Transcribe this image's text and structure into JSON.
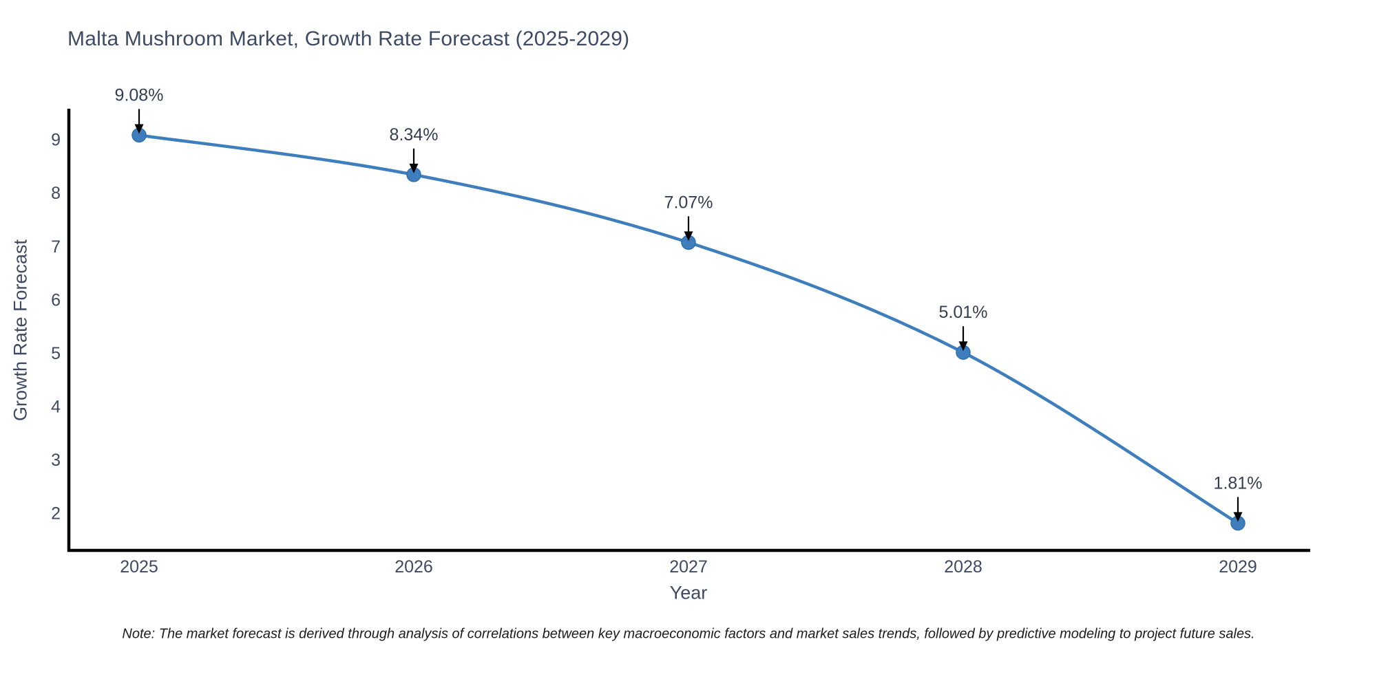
{
  "note": "Note: The market forecast is derived through analysis of correlations between key macroeconomic factors and market sales trends, followed by predictive modeling to project future sales.",
  "chart_data": {
    "type": "line",
    "title": "Malta Mushroom Market, Growth Rate Forecast (2025-2029)",
    "xlabel": "Year",
    "ylabel": "Growth Rate Forecast",
    "x": [
      2025,
      2026,
      2027,
      2028,
      2029
    ],
    "values": [
      9.08,
      8.34,
      7.07,
      5.01,
      1.81
    ],
    "annotations": [
      "9.08%",
      "8.34%",
      "7.07%",
      "5.01%",
      "1.81%"
    ],
    "xticks": [
      "2025",
      "2026",
      "2027",
      "2028",
      "2029"
    ],
    "yticks": [
      2,
      3,
      4,
      5,
      6,
      7,
      8,
      9
    ],
    "ylim": [
      1.3,
      9.55
    ],
    "grid": false,
    "legend": null,
    "line_color": "#3e7ebd",
    "marker_color": "#3e7ebd",
    "marker_edge_color": "#2f6fae",
    "axis_color": "#000000",
    "tick_label_color": "#3e4a63",
    "annotation_text_color": "#333e52",
    "annotation_arrow_color": "#000000"
  }
}
